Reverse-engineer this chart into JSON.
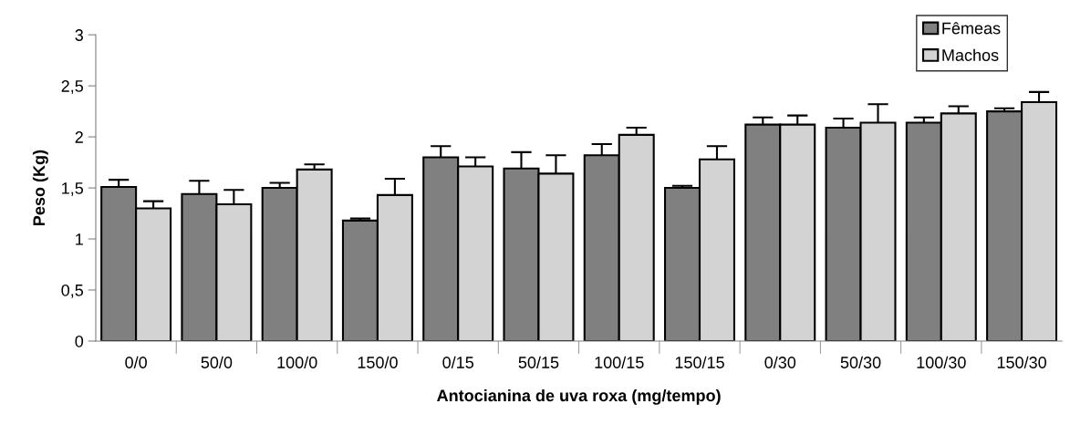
{
  "chart_data": {
    "type": "bar",
    "xlabel": "Antocianina de uva roxa (mg/tempo)",
    "ylabel": "Peso (Kg)",
    "categories": [
      "0/0",
      "50/0",
      "100/0",
      "150/0",
      "0/15",
      "50/15",
      "100/15",
      "150/15",
      "0/30",
      "50/30",
      "100/30",
      "150/30"
    ],
    "series": [
      {
        "name": "Fêmeas",
        "color": "#808080",
        "values": [
          1.51,
          1.44,
          1.5,
          1.18,
          1.8,
          1.69,
          1.82,
          1.5,
          2.12,
          2.09,
          2.14,
          2.25
        ],
        "errors": [
          0.07,
          0.13,
          0.05,
          0.02,
          0.11,
          0.16,
          0.11,
          0.02,
          0.07,
          0.09,
          0.05,
          0.03
        ]
      },
      {
        "name": "Machos",
        "color": "#d3d3d3",
        "values": [
          1.3,
          1.34,
          1.68,
          1.43,
          1.71,
          1.64,
          2.02,
          1.78,
          2.12,
          2.14,
          2.23,
          2.34
        ],
        "errors": [
          0.07,
          0.14,
          0.05,
          0.16,
          0.09,
          0.18,
          0.07,
          0.13,
          0.09,
          0.18,
          0.07,
          0.1
        ]
      }
    ],
    "ylim": [
      0,
      3
    ],
    "yticks": [
      0,
      {
        "value": 0.5,
        "label": "0,5"
      },
      1,
      {
        "value": 1.5,
        "label": "1,5"
      },
      2,
      {
        "value": 2.5,
        "label": "2,5"
      },
      3
    ],
    "grid": false,
    "legend": "top right"
  }
}
